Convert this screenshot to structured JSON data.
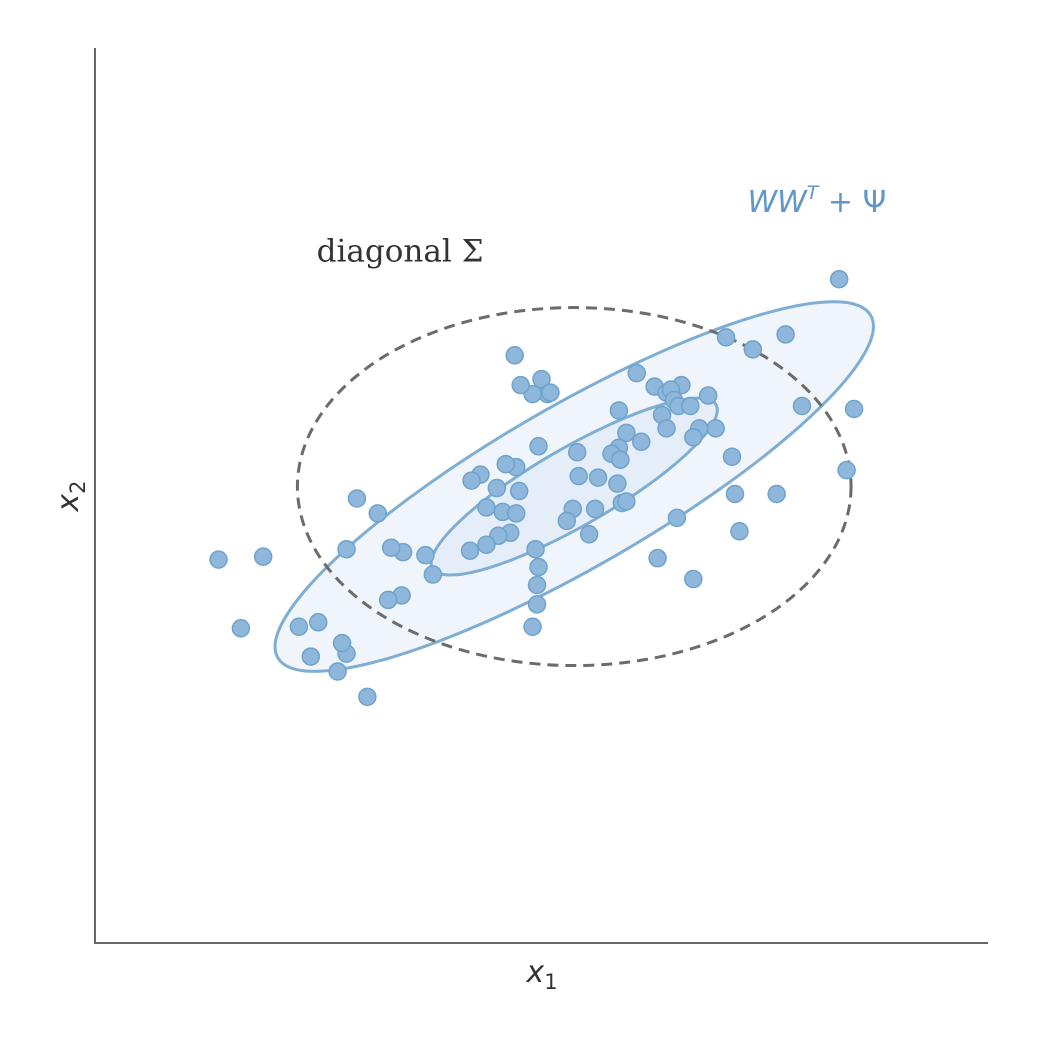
{
  "chart_data": {
    "type": "scatter",
    "title": "",
    "xlabel": "x",
    "xlabel_sub": "1",
    "ylabel": "x",
    "ylabel_sub": "2",
    "xlim": [
      -3.0,
      3.0
    ],
    "ylim": [
      -3.0,
      3.0
    ],
    "grid": false,
    "ticks": "none",
    "colors": {
      "points_fill": "#8fb7db",
      "points_edge": "#6ea3cc",
      "ellipse_stroke": "#7eaed3",
      "ellipse_fill_outer": "#f0f5fb",
      "ellipse_fill_inner": "#e5edf8",
      "dashed_stroke": "#6b6b6b",
      "label_blue": "#5f97c6",
      "label_gray": "#333333"
    },
    "annotations": {
      "dashed": {
        "text": "diagonal Σ",
        "x": -0.95,
        "y": 1.57
      },
      "solid": {
        "base": "WW",
        "sup": "T",
        "tail": " + Ψ",
        "x": 1.85,
        "y": 1.9
      }
    },
    "ellipses": [
      {
        "kind": "dashed",
        "cx": 0.22,
        "cy": 0.06,
        "rx": 1.86,
        "ry": 1.2,
        "angle": 0
      },
      {
        "kind": "outer",
        "cx": 0.22,
        "cy": 0.06,
        "rx": 2.3,
        "ry": 0.54,
        "angle": 30
      },
      {
        "kind": "inner",
        "cx": 0.22,
        "cy": 0.06,
        "rx": 1.1,
        "ry": 0.26,
        "angle": 30
      }
    ],
    "points": [
      [
        2.0,
        1.45
      ],
      [
        1.24,
        1.06
      ],
      [
        1.42,
        0.98
      ],
      [
        1.64,
        1.08
      ],
      [
        2.1,
        0.58
      ],
      [
        2.05,
        0.17
      ],
      [
        1.75,
        0.6
      ],
      [
        1.28,
        0.26
      ],
      [
        1.17,
        0.45
      ],
      [
        1.3,
        0.01
      ],
      [
        -0.18,
        0.94
      ],
      [
        0.0,
        0.78
      ],
      [
        0.04,
        0.68
      ],
      [
        -0.06,
        0.68
      ],
      [
        -0.14,
        0.74
      ],
      [
        0.06,
        0.69
      ],
      [
        0.64,
        0.82
      ],
      [
        0.76,
        0.73
      ],
      [
        0.94,
        0.74
      ],
      [
        0.84,
        0.69
      ],
      [
        1.12,
        0.67
      ],
      [
        0.87,
        0.71
      ],
      [
        0.89,
        0.64
      ],
      [
        0.92,
        0.6
      ],
      [
        1.0,
        0.6
      ],
      [
        1.06,
        0.45
      ],
      [
        0.52,
        0.57
      ],
      [
        0.57,
        0.42
      ],
      [
        0.81,
        0.54
      ],
      [
        0.84,
        0.45
      ],
      [
        1.02,
        0.39
      ],
      [
        0.67,
        0.36
      ],
      [
        0.52,
        0.32
      ],
      [
        0.47,
        0.28
      ],
      [
        -0.02,
        0.33
      ],
      [
        0.24,
        0.29
      ],
      [
        0.25,
        0.13
      ],
      [
        0.38,
        0.12
      ],
      [
        0.53,
        0.24
      ],
      [
        0.51,
        0.08
      ],
      [
        -0.17,
        0.19
      ],
      [
        -0.15,
        0.03
      ],
      [
        -0.24,
        0.21
      ],
      [
        -0.3,
        0.05
      ],
      [
        -0.37,
        -0.08
      ],
      [
        -0.41,
        0.14
      ],
      [
        -0.47,
        0.1
      ],
      [
        -0.26,
        -0.11
      ],
      [
        -0.17,
        -0.12
      ],
      [
        0.21,
        -0.09
      ],
      [
        0.17,
        -0.17
      ],
      [
        0.32,
        -0.26
      ],
      [
        0.54,
        -0.05
      ],
      [
        0.36,
        -0.09
      ],
      [
        -0.21,
        -0.25
      ],
      [
        -0.29,
        -0.27
      ],
      [
        -0.37,
        -0.33
      ],
      [
        -0.48,
        -0.37
      ],
      [
        -0.04,
        -0.36
      ],
      [
        -0.02,
        -0.48
      ],
      [
        -0.03,
        -0.6
      ],
      [
        -0.03,
        -0.73
      ],
      [
        -0.06,
        -0.88
      ],
      [
        0.57,
        -0.04
      ],
      [
        0.91,
        -0.15
      ],
      [
        0.78,
        -0.42
      ],
      [
        1.33,
        -0.24
      ],
      [
        1.58,
        0.01
      ],
      [
        1.02,
        -0.56
      ],
      [
        -0.78,
        -0.4
      ],
      [
        -0.73,
        -0.53
      ],
      [
        -0.93,
        -0.38
      ],
      [
        -1.01,
        -0.35
      ],
      [
        -0.94,
        -0.67
      ],
      [
        -1.1,
        -0.12
      ],
      [
        -1.24,
        -0.02
      ],
      [
        -1.03,
        -0.7
      ],
      [
        -1.31,
        -0.36
      ],
      [
        -1.17,
        -1.35
      ],
      [
        -1.31,
        -1.06
      ],
      [
        -1.34,
        -0.99
      ],
      [
        -1.37,
        -1.18
      ],
      [
        -1.5,
        -0.85
      ],
      [
        -1.55,
        -1.08
      ],
      [
        -1.63,
        -0.88
      ],
      [
        -2.02,
        -0.89
      ],
      [
        -1.87,
        -0.41
      ],
      [
        -2.17,
        -0.43
      ]
    ]
  }
}
